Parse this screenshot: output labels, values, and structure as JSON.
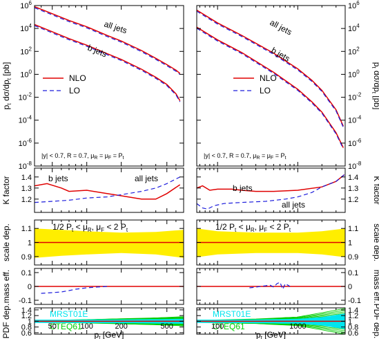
{
  "chart_data": {
    "type": "line",
    "columns": [
      {
        "id": "left",
        "x_scale": "log",
        "xlim": [
          35,
          700
        ],
        "xticks": [
          {
            "v": 50,
            "label": "50"
          },
          {
            "v": 100,
            "label": "100"
          },
          {
            "v": 200,
            "label": "200"
          },
          {
            "v": 500,
            "label": "500"
          }
        ],
        "xminor": [
          40,
          60,
          70,
          80,
          90,
          300,
          400,
          600,
          700
        ],
        "xlabel_main": "p",
        "xlabel_sub": "t",
        "xlabel_rest": " [GeV]"
      },
      {
        "id": "right",
        "x_scale": "log",
        "xlim": [
          55,
          3900
        ],
        "xticks": [
          {
            "v": 100,
            "label": "100"
          },
          {
            "v": 1000,
            "label": "1000"
          }
        ],
        "xminor": [
          60,
          70,
          80,
          90,
          200,
          300,
          400,
          500,
          600,
          700,
          800,
          900,
          2000,
          3000
        ],
        "xlabel_main": "p",
        "xlabel_sub": "t",
        "xlabel_rest": " [GeV]"
      }
    ],
    "panels": [
      {
        "id": "cross-section",
        "ylabel_main": "p",
        "ylabel_sub": "t",
        "ylabel_rest": " dσ/dp",
        "ylabel_sub2": "t",
        "ylabel_unit": " [pb]",
        "y_scale": "log",
        "ylim": [
          1e-08,
          1000000.0
        ],
        "yticks_exp": [
          -8,
          -6,
          -4,
          -2,
          0,
          2,
          4,
          6
        ],
        "legend": {
          "nlo": "NLO",
          "lo": "LO",
          "position": "lower-left (left column)"
        },
        "annotations": {
          "all_jets": "all jets",
          "b_jets": "b jets",
          "cuts": "|y| < 0.7,  R = 0.7, μ",
          "cuts_sub1": "R",
          "cuts_mid": " = μ",
          "cuts_sub2": "F",
          "cuts_end": " = P",
          "cuts_sub3": "t"
        },
        "left": {
          "all_jets": {
            "x": [
              35,
              70,
              100,
              150,
              200,
              300,
              400,
              500,
              600,
              650
            ],
            "y": [
              800000,
              50000,
              14000,
              2500,
              800,
              120,
              25,
              7,
              2.3,
              1.2
            ]
          },
          "b_jets": {
            "x": [
              35,
              70,
              100,
              150,
              200,
              300,
              400,
              500,
              600,
              650
            ],
            "y": [
              22000,
              1300,
              350,
              65,
              20,
              2.8,
              0.55,
              0.13,
              0.02,
              0.005
            ]
          }
        },
        "right": {
          "all_jets": {
            "x": [
              55,
              100,
              200,
              500,
              1000,
              1500,
              2000,
              3000,
              3700
            ],
            "y": [
              400000,
              30000,
              2500,
              70,
              3,
              0.3,
              0.04,
              0.0008,
              3e-05
            ]
          },
          "b_jets": {
            "x": [
              55,
              100,
              200,
              500,
              1000,
              1500,
              2000,
              3000,
              3700
            ],
            "y": [
              13000,
              1000,
              80,
              1.5,
              0.05,
              0.004,
              0.0005,
              8e-06,
              4e-07
            ]
          }
        }
      },
      {
        "id": "k-factor",
        "ylabel": "K factor",
        "y_scale": "linear",
        "ylim": [
          1.08,
          1.48
        ],
        "yticks": [
          1.2,
          1.3,
          1.4
        ],
        "ytick_labels": [
          "1.2",
          "1.3",
          "1.4"
        ],
        "annotations": {
          "b_jets": "b jets",
          "all_jets": "all jets"
        },
        "left": {
          "nlo_bjets": {
            "x": [
              35,
              45,
              60,
              70,
              100,
              150,
              200,
              300,
              400,
              500,
              650
            ],
            "y": [
              1.32,
              1.34,
              1.3,
              1.27,
              1.28,
              1.25,
              1.23,
              1.2,
              1.2,
              1.25,
              1.33
            ]
          },
          "lo_alljets": {
            "x": [
              35,
              50,
              70,
              100,
              150,
              200,
              300,
              400,
              500,
              650
            ],
            "y": [
              1.17,
              1.18,
              1.19,
              1.21,
              1.22,
              1.24,
              1.27,
              1.3,
              1.34,
              1.4
            ]
          }
        },
        "right": {
          "nlo_bjets": {
            "x": [
              55,
              65,
              80,
              100,
              150,
              200,
              300,
              500,
              1000,
              2000,
              3000,
              3800
            ],
            "y": [
              1.3,
              1.32,
              1.28,
              1.29,
              1.29,
              1.28,
              1.27,
              1.27,
              1.28,
              1.31,
              1.36,
              1.42
            ]
          },
          "lo_alljets": {
            "x": [
              55,
              65,
              75,
              90,
              120,
              200,
              400,
              700,
              1000,
              1500,
              2000,
              3000,
              3800
            ],
            "y": [
              1.16,
              1.12,
              1.11,
              1.14,
              1.16,
              1.17,
              1.18,
              1.2,
              1.22,
              1.26,
              1.31,
              1.36,
              1.42
            ]
          }
        }
      },
      {
        "id": "scale-dependence",
        "ylabel": "scale dep.",
        "y_scale": "linear",
        "ylim": [
          0.84,
          1.16
        ],
        "yticks": [
          0.9,
          1.0,
          1.1
        ],
        "ytick_labels": [
          "0.9",
          "1",
          "1.1"
        ],
        "annotation_text": "1/2 P",
        "annotation_sub": "t",
        "annotation_mid": " < μ",
        "annotation_sub2": "R",
        "annotation_mid2": ", μ",
        "annotation_sub3": "F",
        "annotation_mid3": " < 2 P",
        "annotation_sub4": "t",
        "left": {
          "band_x": [
            35,
            60,
            100,
            200,
            400,
            700
          ],
          "band_upper": [
            1.1,
            1.09,
            1.08,
            1.07,
            1.075,
            1.09
          ],
          "band_lower": [
            0.89,
            0.905,
            0.915,
            0.925,
            0.915,
            0.89
          ]
        },
        "right": {
          "band_x": [
            55,
            100,
            300,
            1000,
            2000,
            3900
          ],
          "band_upper": [
            1.1,
            1.08,
            1.07,
            1.07,
            1.08,
            1.1
          ],
          "band_lower": [
            0.895,
            0.915,
            0.925,
            0.925,
            0.915,
            0.895
          ]
        }
      },
      {
        "id": "mass-effect",
        "ylabel": "mass eff.",
        "y_scale": "linear",
        "ylim": [
          -0.13,
          0.13
        ],
        "yticks": [
          -0.1,
          0,
          0.1
        ],
        "ytick_labels": [
          "-0.1",
          "0",
          "0.1"
        ],
        "left": {
          "lo_x": [
            40,
            50,
            60,
            70,
            80,
            90,
            100,
            120,
            150
          ],
          "lo_y": [
            -0.05,
            -0.045,
            -0.04,
            -0.03,
            -0.02,
            -0.015,
            -0.01,
            -0.005,
            0.0
          ]
        },
        "right": {
          "lo_x": [
            250,
            300,
            400,
            450,
            500,
            550,
            600,
            650,
            700,
            800
          ],
          "lo_y": [
            -0.01,
            -0.005,
            0.005,
            0.01,
            -0.005,
            0.02,
            0.03,
            -0.02,
            0.02,
            0.0
          ]
        }
      },
      {
        "id": "pdf-dependence",
        "ylabel": "PDF dep.",
        "y_scale": "linear",
        "ylim": [
          0.55,
          1.47
        ],
        "yticks": [
          0.6,
          0.8,
          1.0,
          1.2,
          1.4
        ],
        "ytick_labels": [
          "0.6",
          "0.8",
          "1",
          "1.2",
          "1.4"
        ],
        "labels": {
          "mrst": "MRST01E",
          "cteq": "CTEQ61"
        },
        "colors": {
          "mrst": "#00e5ee",
          "cteq": "#00cc00",
          "nlo": "#e00000",
          "lo": "#1c1cdc",
          "band": "#ffee00"
        },
        "left": {
          "spread_mrst": [
            0.03,
            0.03,
            0.035,
            0.04,
            0.05,
            0.06
          ],
          "spread_cteq": [
            0.04,
            0.045,
            0.06,
            0.09,
            0.12,
            0.16
          ],
          "x": [
            35,
            60,
            100,
            200,
            400,
            700
          ]
        },
        "right": {
          "spread_mrst": [
            0.03,
            0.03,
            0.04,
            0.06,
            0.12,
            0.25
          ],
          "spread_cteq": [
            0.04,
            0.05,
            0.08,
            0.15,
            0.3,
            0.45
          ],
          "x": [
            55,
            100,
            300,
            1000,
            2000,
            3900
          ]
        }
      }
    ]
  }
}
